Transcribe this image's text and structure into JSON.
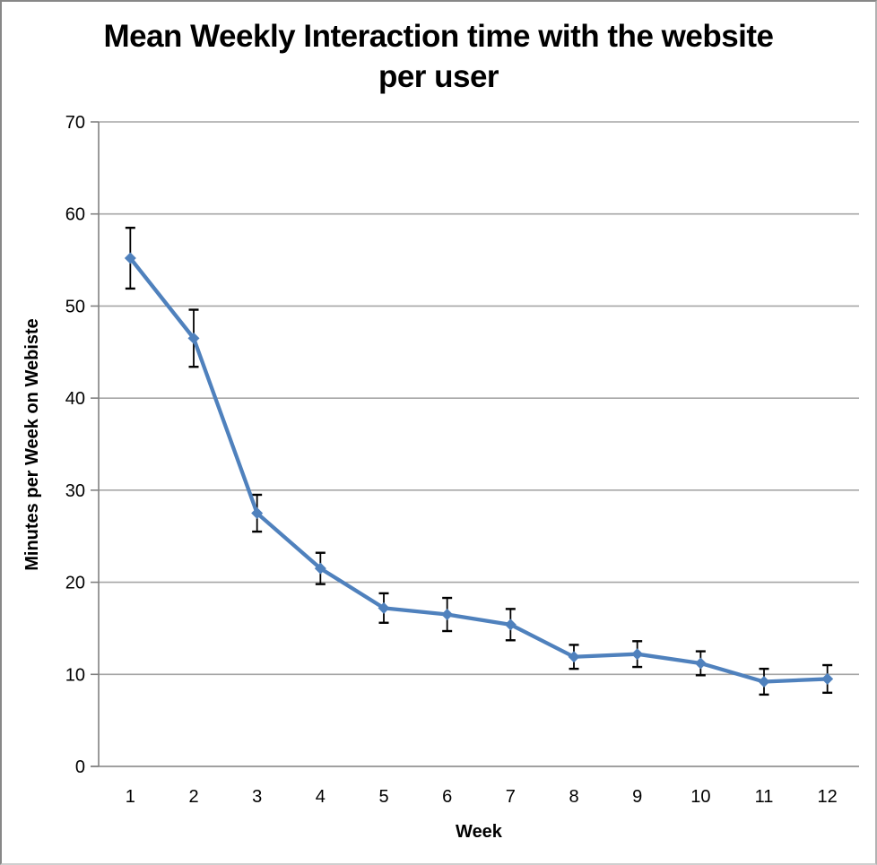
{
  "frame": {
    "background": "#ffffff",
    "border_color": "#878787"
  },
  "chart_data": {
    "type": "line",
    "title": "Mean Weekly Interaction time with the website per user",
    "title_lines": [
      "Mean Weekly Interaction time with the website",
      "per user"
    ],
    "xlabel": "Week",
    "ylabel": "Minutes per Week on Webiste",
    "categories": [
      "1",
      "2",
      "3",
      "4",
      "5",
      "6",
      "7",
      "8",
      "9",
      "10",
      "11",
      "12"
    ],
    "series": [
      {
        "values": [
          55.2,
          46.5,
          27.5,
          21.5,
          17.2,
          16.5,
          15.4,
          11.9,
          12.2,
          11.2,
          9.2,
          9.5
        ],
        "error_bars": [
          3.3,
          3.1,
          2.0,
          1.7,
          1.6,
          1.8,
          1.7,
          1.3,
          1.4,
          1.3,
          1.4,
          1.5
        ],
        "color": "#4f81bd",
        "marker": "diamond"
      }
    ],
    "ylim": [
      0,
      70
    ],
    "yticks": [
      0,
      10,
      20,
      30,
      40,
      50,
      60,
      70
    ],
    "grid": true,
    "legend": "none",
    "error_bar_color": "#000000",
    "gridline_color": "#a6a6a6",
    "axis_color": "#808080"
  }
}
